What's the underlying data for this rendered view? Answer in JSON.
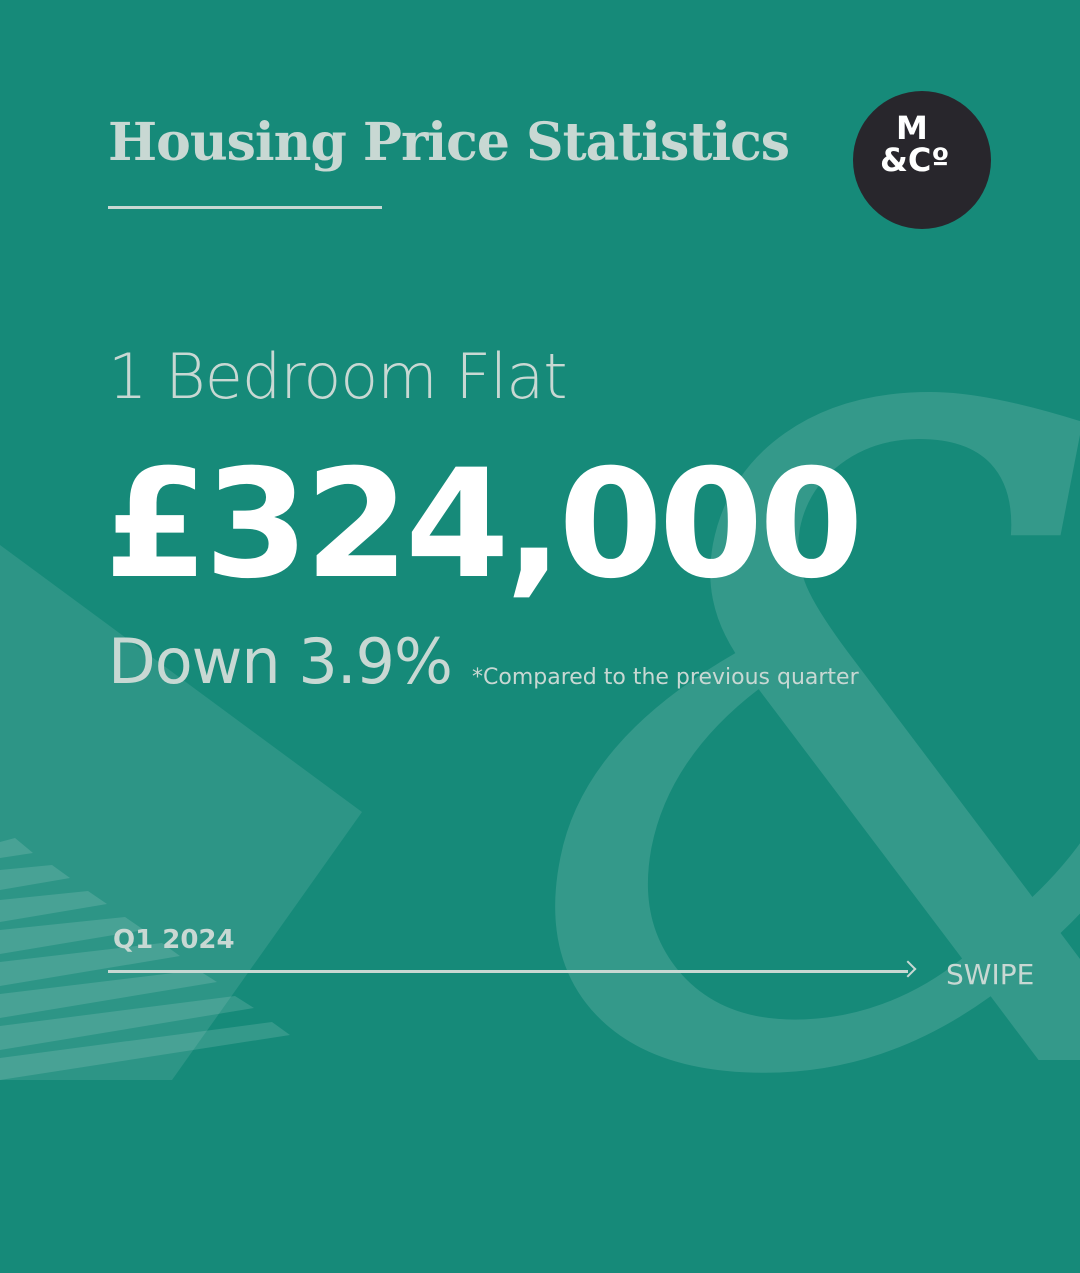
{
  "header": {
    "title": "Housing Price Statistics",
    "logo_text_line1": "M",
    "logo_text_line2": "&Cº"
  },
  "main": {
    "property_type": "1 Bedroom Flat",
    "price": "£324,000",
    "change": "Down 3.9%",
    "change_note": "*Compared to the previous quarter"
  },
  "footer": {
    "period": "Q1 2024",
    "swipe_label": "SWIPE"
  },
  "colors": {
    "background": "#168a79",
    "text": "#c8d8d3",
    "logo_bg": "#28262c"
  },
  "decoration": {
    "glyph": "&"
  }
}
